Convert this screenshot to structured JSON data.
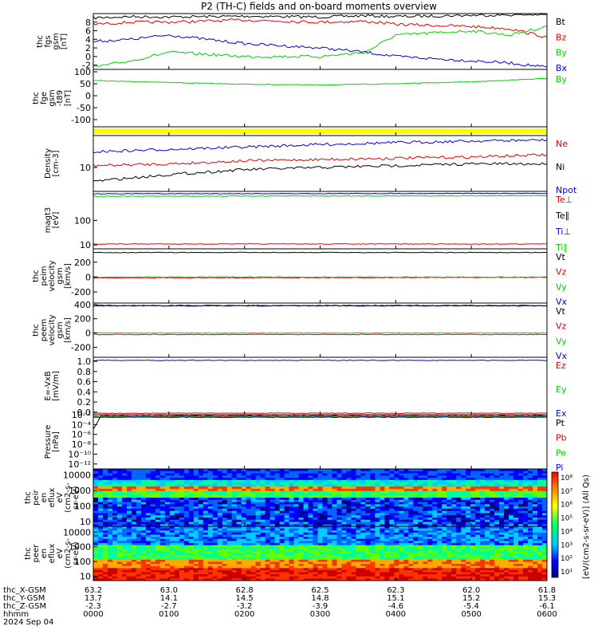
{
  "title": "P2 (TH-C) fields and on-board moments overview",
  "colors": {
    "black": "#000000",
    "red": "#e00000",
    "green": "#00d000",
    "blue": "#0000e0",
    "yellow": "#ffff00"
  },
  "chart_data": [
    {
      "type": "line",
      "ylabel": [
        "thc",
        "fgs",
        "gsm",
        "[nT]"
      ],
      "yticks": [
        "8",
        "6",
        "4",
        "2",
        "0",
        "-2"
      ],
      "ylim": [
        -3,
        10
      ],
      "legend": [
        {
          "name": "Bt",
          "color": "black"
        },
        {
          "name": "Bz",
          "color": "red"
        },
        {
          "name": "By",
          "color": "green"
        },
        {
          "name": "Bx",
          "color": "blue"
        }
      ],
      "series": [
        {
          "name": "Bt",
          "color": "black",
          "x": [
            0,
            0.5,
            1,
            2,
            3,
            3.6,
            4,
            5,
            5.5,
            6
          ],
          "y": [
            9,
            9.3,
            9.2,
            9.4,
            9.2,
            9.5,
            9.3,
            9.6,
            9.7,
            9.8
          ]
        },
        {
          "name": "Bz",
          "color": "red",
          "x": [
            0,
            0.5,
            1,
            2,
            3,
            3.6,
            4,
            5,
            5.5,
            6
          ],
          "y": [
            7.5,
            8,
            8,
            8.5,
            8,
            8.2,
            7.5,
            7,
            6.5,
            4.5
          ]
        },
        {
          "name": "By",
          "color": "green",
          "x": [
            0,
            0.5,
            1,
            2,
            3,
            3.6,
            4,
            5,
            5.5,
            6
          ],
          "y": [
            -2.5,
            -1,
            1,
            0,
            0,
            1,
            5,
            6,
            5,
            7
          ]
        },
        {
          "name": "Bx",
          "color": "blue",
          "x": [
            0,
            0.5,
            1,
            2,
            3,
            3.6,
            4,
            5,
            5.5,
            6
          ],
          "y": [
            3.5,
            4,
            5,
            3,
            2,
            1,
            0,
            -1,
            -1.5,
            -2.5
          ]
        }
      ]
    },
    {
      "type": "line",
      "ylabel": [
        "thc",
        "fge",
        "gsm",
        "-t89",
        "[nT]"
      ],
      "yticks": [
        "100",
        "50",
        "0",
        "-50",
        "-100"
      ],
      "ylim": [
        -130,
        110
      ],
      "legend": [
        {
          "name": "By",
          "color": "green"
        }
      ],
      "series": [
        {
          "name": "By",
          "color": "green",
          "x": [
            0,
            1,
            2,
            3,
            4,
            5,
            6
          ],
          "y": [
            63,
            55,
            48,
            45,
            50,
            58,
            72
          ]
        }
      ]
    },
    {
      "type": "bar",
      "ylabel": [],
      "yticks": [],
      "legend": [],
      "band_color": "yellow"
    },
    {
      "type": "line",
      "scale": "log",
      "ylabel": [
        "Density",
        "[cm-3]"
      ],
      "yticks": [
        "10"
      ],
      "ylim": [
        3,
        50
      ],
      "legend": [
        {
          "name": "Ne",
          "color": "red"
        },
        {
          "name": "Ni",
          "color": "black"
        },
        {
          "name": "Npot",
          "color": "blue"
        }
      ],
      "series": [
        {
          "name": "Npot",
          "color": "blue",
          "x": [
            0,
            1,
            2,
            3,
            4,
            5,
            6
          ],
          "y": [
            22,
            25,
            28,
            32,
            35,
            38,
            40
          ]
        },
        {
          "name": "Ne",
          "color": "red",
          "x": [
            0,
            1,
            2,
            3,
            4,
            5,
            6
          ],
          "y": [
            11,
            12,
            14,
            15,
            16,
            17,
            19
          ]
        },
        {
          "name": "Ni",
          "color": "black",
          "x": [
            0,
            1,
            2,
            3,
            4,
            5,
            6
          ],
          "y": [
            5,
            7,
            9,
            10,
            11,
            12,
            12
          ]
        }
      ]
    },
    {
      "type": "line",
      "scale": "log",
      "ylabel": [
        "magt3",
        "[eV]"
      ],
      "yticks": [
        "100",
        "10"
      ],
      "ylim": [
        7,
        1500
      ],
      "legend": [
        {
          "name": "Te⊥",
          "color": "red"
        },
        {
          "name": "Te∥",
          "color": "black"
        },
        {
          "name": "Ti⊥",
          "color": "blue"
        },
        {
          "name": "Ti∥",
          "color": "green"
        }
      ],
      "series": [
        {
          "name": "Ti⊥",
          "color": "blue",
          "x": [
            0,
            6
          ],
          "y": [
            1200,
            1250
          ]
        },
        {
          "name": "Ti∥",
          "color": "green",
          "x": [
            0,
            6
          ],
          "y": [
            950,
            1000
          ]
        },
        {
          "name": "Te⊥",
          "color": "red",
          "x": [
            0,
            6
          ],
          "y": [
            11,
            11
          ]
        }
      ]
    },
    {
      "type": "line",
      "ylabel": [
        "thc",
        "peim",
        "velocity",
        "gsm",
        "[km/s]"
      ],
      "yticks": [
        "200",
        "0",
        "-200"
      ],
      "ylim": [
        -350,
        380
      ],
      "legend": [
        {
          "name": "Vt",
          "color": "black"
        },
        {
          "name": "Vz",
          "color": "red"
        },
        {
          "name": "Vy",
          "color": "green"
        },
        {
          "name": "Vx",
          "color": "blue"
        }
      ],
      "series": [
        {
          "name": "Vt",
          "color": "black",
          "x": [
            0,
            6
          ],
          "y": [
            330,
            330
          ]
        },
        {
          "name": "Vz",
          "color": "red",
          "x": [
            0,
            6
          ],
          "y": [
            -10,
            -5
          ]
        },
        {
          "name": "Vy",
          "color": "green",
          "x": [
            0,
            6
          ],
          "y": [
            0,
            0
          ]
        }
      ]
    },
    {
      "type": "line",
      "ylabel": [
        "thc",
        "peem",
        "velocity",
        "gsm",
        "[km/s]"
      ],
      "yticks": [
        "400",
        "200",
        "0",
        "-200"
      ],
      "ylim": [
        -340,
        420
      ],
      "legend": [
        {
          "name": "Vt",
          "color": "black"
        },
        {
          "name": "Vz",
          "color": "red"
        },
        {
          "name": "Vy",
          "color": "green"
        },
        {
          "name": "Vx",
          "color": "blue"
        }
      ],
      "series": [
        {
          "name": "Vt",
          "color": "black",
          "x": [
            0,
            6
          ],
          "y": [
            385,
            385
          ]
        },
        {
          "name": "Vx",
          "color": "blue",
          "x": [
            0,
            6
          ],
          "y": [
            380,
            380
          ]
        },
        {
          "name": "Vy",
          "color": "green",
          "x": [
            0,
            6
          ],
          "y": [
            0,
            0
          ]
        },
        {
          "name": "Vz",
          "color": "red",
          "x": [
            0,
            6
          ],
          "y": [
            -20,
            -20
          ]
        }
      ]
    },
    {
      "type": "line",
      "ylabel": [
        "E=-VxB",
        "[mV/m]"
      ],
      "yticks": [
        "1.0",
        "0.8",
        "0.6",
        "0.4",
        "0.2",
        "0.0"
      ],
      "ylim": [
        -0.05,
        1.08
      ],
      "legend": [
        {
          "name": "Ez",
          "color": "red"
        },
        {
          "name": "Ey",
          "color": "green"
        },
        {
          "name": "Ex",
          "color": "blue"
        }
      ],
      "series": [
        {
          "name": "Ex",
          "color": "blue",
          "x": [
            0,
            6
          ],
          "y": [
            1.02,
            1.02
          ]
        },
        {
          "name": "Ez",
          "color": "red",
          "x": [
            0,
            6
          ],
          "y": [
            -0.02,
            -0.02
          ]
        }
      ]
    },
    {
      "type": "line",
      "scale": "log",
      "ylabel": [
        "Pressure",
        "[nPa]"
      ],
      "yticks": [
        "10⁻²",
        "10⁻⁴",
        "10⁻⁶",
        "10⁻⁸",
        "10⁻¹⁰",
        "10⁻¹²"
      ],
      "ylim": [
        1e-13,
        0.01
      ],
      "legend": [
        {
          "name": "Pt",
          "color": "black"
        },
        {
          "name": "Pb",
          "color": "red"
        },
        {
          "name": "Pe",
          "color": "green"
        },
        {
          "name": "Pi",
          "color": "blue"
        }
      ],
      "series": [
        {
          "name": "Pt",
          "color": "black",
          "x": [
            0,
            0.1,
            6
          ],
          "y": [
            1e-05,
            0.006,
            0.006
          ]
        },
        {
          "name": "Pb",
          "color": "red",
          "x": [
            0,
            6
          ],
          "y": [
            0.004,
            0.004
          ]
        },
        {
          "name": "Pe",
          "color": "green",
          "x": [
            0,
            6
          ],
          "y": [
            0.005,
            0.005
          ]
        },
        {
          "name": "Pi",
          "color": "blue",
          "x": [
            0,
            6
          ],
          "y": [
            0.003,
            0.003
          ]
        }
      ]
    },
    {
      "type": "heatmap",
      "scale": "log",
      "ylabel": [
        "thc",
        "peir",
        "en",
        "eflux",
        "eV",
        "(cm2-s-",
        "sr-eV)"
      ],
      "yticks": [
        "10000",
        "1000",
        "100",
        "10"
      ],
      "ylim": [
        5,
        25000
      ]
    },
    {
      "type": "heatmap",
      "scale": "log",
      "ylabel": [
        "thc",
        "peer",
        "en",
        "eflux",
        "eV",
        "(cm2-s-",
        "sr-eV)"
      ],
      "yticks": [
        "10000",
        "1000",
        "100",
        "10"
      ],
      "ylim": [
        5,
        25000
      ]
    }
  ],
  "colorbar": {
    "ticks": [
      "10⁸",
      "10⁷",
      "10⁶",
      "10⁵",
      "10⁴",
      "10³",
      "10²",
      "10¹"
    ],
    "label": "[eV/(cm2-s-sr-eV)] (All Qs)"
  },
  "x_axis": {
    "rows": [
      {
        "label": "thc_X-GSM",
        "values": [
          "63.2",
          "63.0",
          "62.8",
          "62.5",
          "62.3",
          "62.0",
          "61.8"
        ]
      },
      {
        "label": "thc_Y-GSM",
        "values": [
          "13.7",
          "14.1",
          "14.5",
          "14.8",
          "15.1",
          "15.2",
          "15.3"
        ]
      },
      {
        "label": "thc_Z-GSM",
        "values": [
          "-2.3",
          "-2.7",
          "-3.2",
          "-3.9",
          "-4.6",
          "-5.4",
          "-6.1"
        ]
      },
      {
        "label": "hhmm",
        "values": [
          "0000",
          "0100",
          "0200",
          "0300",
          "0400",
          "0500",
          "0600"
        ]
      }
    ],
    "date": "2024 Sep 04"
  }
}
